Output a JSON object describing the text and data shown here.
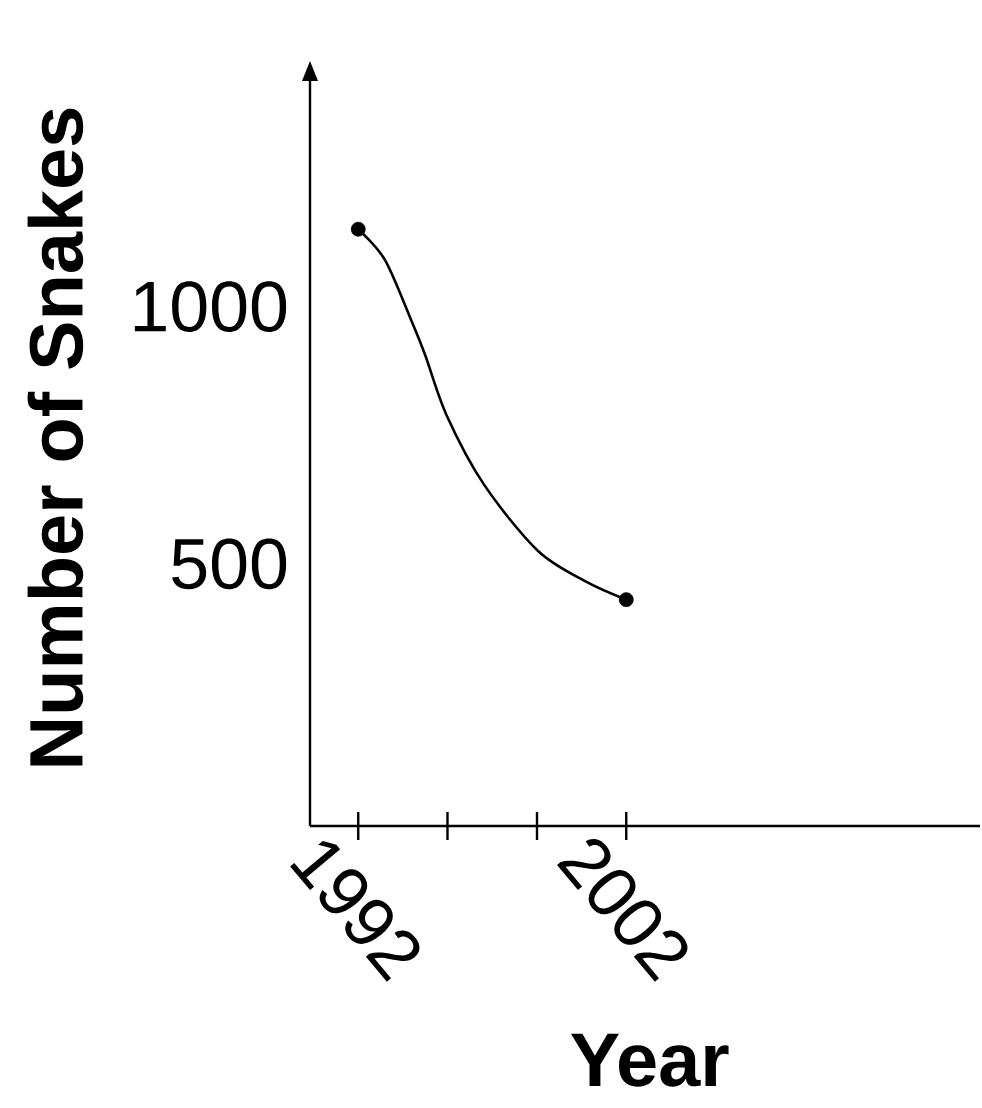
{
  "chart_data": {
    "type": "line",
    "xlabel": "Year",
    "ylabel": "Number of Snakes",
    "xlim": [
      1990.2,
      2015.2
    ],
    "ylim": [
      0,
      1450
    ],
    "xticks": [
      1992,
      {
        "value": 1995.33,
        "label": null
      },
      {
        "value": 1998.67,
        "label": null
      },
      2002
    ],
    "yticks": [
      500,
      1000
    ],
    "series": [
      {
        "type": "line",
        "color": "#000000",
        "marker": "none",
        "x": [
          1992,
          1993,
          1994,
          1994.5,
          1995.3,
          1996.7,
          1998.7,
          2000.5,
          2002
        ],
        "values": [
          1160,
          1100,
          980,
          915,
          798,
          663,
          535,
          475,
          440
        ]
      },
      {
        "type": "scatter",
        "color": "#000000",
        "marker": "circle",
        "x": [
          1992,
          2002
        ],
        "values": [
          1160,
          440
        ]
      }
    ]
  }
}
